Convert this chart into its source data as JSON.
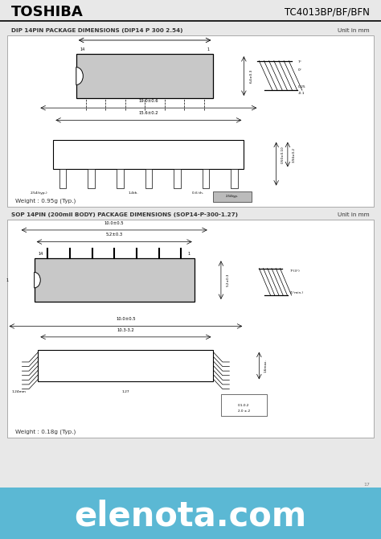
{
  "title_left": "TOSHIBA",
  "title_right": "TC4013BP/BF/BFN",
  "section1_title": "DIP 14PIN PACKAGE DIMENSIONS (DIP14 P 300 2.54)",
  "section1_unit": "Unit in mm",
  "section1_weight": "Weight : 0.95g (Typ.)",
  "section2_title": "SOP 14PIN (200mil BODY) PACKAGE DIMENSIONS (SOP14-P-300-1.27)",
  "section2_unit": "Unit in mm",
  "section2_weight": "Weight : 0.18g (Typ.)",
  "footer_text": "elenota.com",
  "footer_bg": "#5bb8d4",
  "footer_text_color": "#ffffff",
  "bg_color": "#ffffff",
  "page_bg": "#e8e8e8",
  "border_color": "#888888",
  "text_color": "#333333"
}
